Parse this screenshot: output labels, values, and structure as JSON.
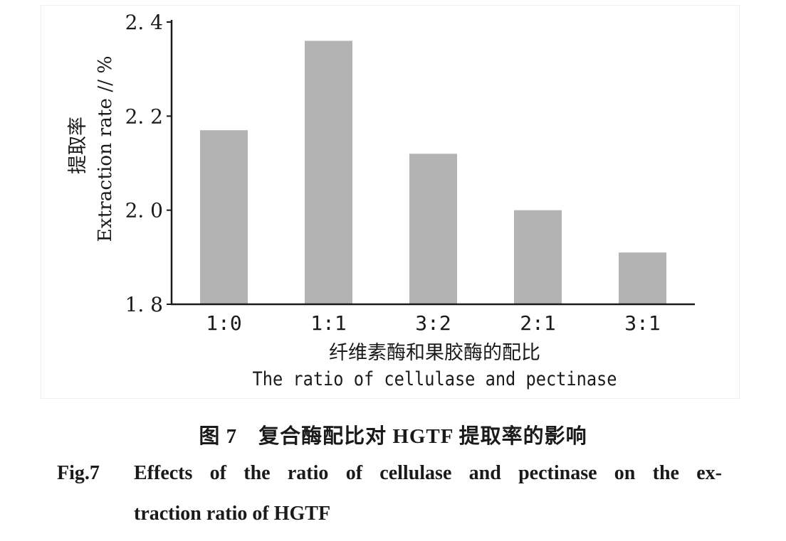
{
  "chart_data": {
    "type": "bar",
    "categories": [
      "1:0",
      "1:1",
      "3:2",
      "2:1",
      "3:1"
    ],
    "values": [
      2.17,
      2.36,
      2.12,
      2.0,
      1.91
    ],
    "ylim": [
      1.8,
      2.4
    ],
    "yticks": [
      1.8,
      2.0,
      2.2,
      2.4
    ],
    "ytick_labels": [
      "1. 8",
      "2. 0",
      "2. 2",
      "2. 4"
    ],
    "ylabel_zh": "提取率",
    "ylabel": "Extraction rate // %",
    "xlabel_zh": "纤维素酶和果胶酶的配比",
    "xlabel": "The ratio of cellulase and pectinase",
    "grid": false,
    "bar_color": "#b3b3b3",
    "axis_color": "#1a1a1a"
  },
  "caption": {
    "zh": "图 7　复合酶配比对 HGTF 提取率的影响",
    "en_label": "Fig.7",
    "en_line1": "Effects of the ratio of cellulase and pectinase on the ex-",
    "en_line2": "traction ratio of HGTF"
  }
}
